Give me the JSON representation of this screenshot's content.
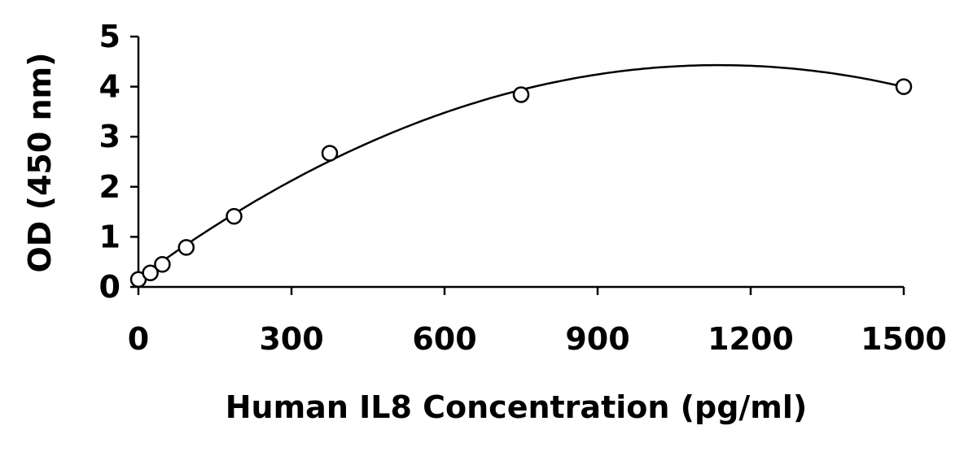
{
  "chart_data": {
    "type": "scatter",
    "xlabel": "Human IL8 Concentration (pg/ml)",
    "ylabel": "OD (450 nm)",
    "xlim": [
      0,
      1500
    ],
    "ylim": [
      0,
      5
    ],
    "xticks": [
      "0",
      "300",
      "600",
      "900",
      "1200",
      "1500"
    ],
    "yticks": [
      "0",
      "1",
      "2",
      "3",
      "4",
      "5"
    ],
    "grid": false,
    "legend": "none",
    "series": [
      {
        "points": [
          {
            "x": 0,
            "y": 0.15
          },
          {
            "x": 23.4,
            "y": 0.28
          },
          {
            "x": 46.9,
            "y": 0.45
          },
          {
            "x": 93.8,
            "y": 0.79
          },
          {
            "x": 187.5,
            "y": 1.41
          },
          {
            "x": 375,
            "y": 2.67
          },
          {
            "x": 750,
            "y": 3.84
          },
          {
            "x": 1500,
            "y": 4.0
          }
        ]
      }
    ],
    "fit_curve": {
      "type": "polynomial",
      "points": [
        {
          "x": 0,
          "y": 0.13
        },
        {
          "x": 300,
          "y": 2.2
        },
        {
          "x": 600,
          "y": 3.47
        },
        {
          "x": 900,
          "y": 4.2
        },
        {
          "x": 1125,
          "y": 4.42
        },
        {
          "x": 1350,
          "y": 4.3
        },
        {
          "x": 1500,
          "y": 4.0
        }
      ]
    }
  }
}
